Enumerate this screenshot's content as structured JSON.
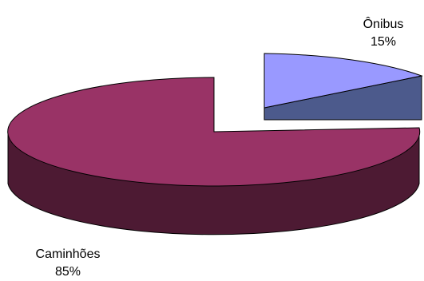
{
  "chart_data": {
    "type": "pie",
    "style": "3d-exploded",
    "title": "",
    "slices": [
      {
        "label": "Ônibus",
        "value": 15,
        "percent_label": "15%",
        "color": "#9999ff",
        "side_color": "#4c5a8c"
      },
      {
        "label": "Caminhões",
        "value": 85,
        "percent_label": "85%",
        "color": "#993366",
        "side_color": "#4d1a33"
      }
    ],
    "legend": "none"
  }
}
